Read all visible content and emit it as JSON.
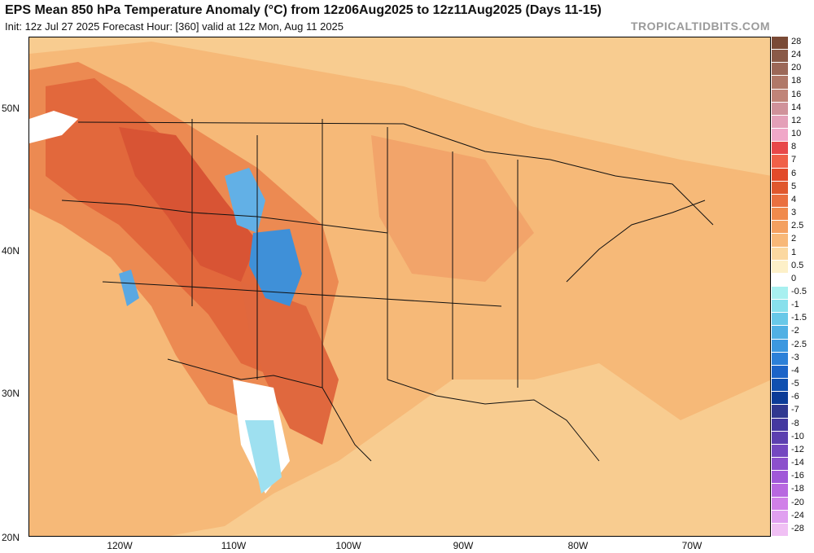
{
  "header": {
    "title": "EPS Mean 850 hPa Temperature Anomaly (°C) from 12z06Aug2025 to 12z11Aug2025 (Days 11-15)",
    "subtitle": "Init: 12z Jul 27 2025   Forecast Hour: [360]   valid at 12z Mon, Aug 11 2025",
    "credit": "TROPICALTIDBITS.COM"
  },
  "map": {
    "lat_labels": [
      "50N",
      "40N",
      "30N",
      "20N"
    ],
    "lon_labels": [
      "120W",
      "110W",
      "100W",
      "90W",
      "80W",
      "70W"
    ],
    "background_color": "#f7c98c"
  },
  "colorbar": {
    "labels": [
      "28",
      "24",
      "20",
      "18",
      "16",
      "14",
      "12",
      "10",
      "8",
      "7",
      "6",
      "5",
      "4",
      "3",
      "2.5",
      "2",
      "1",
      "0.5",
      "0",
      "-0.5",
      "-1",
      "-1.5",
      "-2",
      "-2.5",
      "-3",
      "-4",
      "-5",
      "-6",
      "-7",
      "-8",
      "-10",
      "-12",
      "-14",
      "-16",
      "-18",
      "-20",
      "-24",
      "-28"
    ],
    "colors": [
      "#7a4a36",
      "#8a5a48",
      "#9c6858",
      "#b07868",
      "#c08478",
      "#d0929a",
      "#e4a0b8",
      "#f0a8c8",
      "#e8484a",
      "#f06048",
      "#e24a2a",
      "#e0582e",
      "#ea7040",
      "#f08a4c",
      "#f4a060",
      "#f8b878",
      "#fbd8a0",
      "#fdf0c8",
      "#ffffff",
      "#a8f0f0",
      "#88e0ec",
      "#68c8e8",
      "#50b0e4",
      "#3c98e0",
      "#2c80d8",
      "#1c64c8",
      "#1050b0",
      "#0c3c98",
      "#303890",
      "#4438a0",
      "#5c40b0",
      "#7448c0",
      "#8c50cc",
      "#a058d8",
      "#b868e0",
      "#d080e8",
      "#e0a0f0",
      "#f0c0f4"
    ]
  }
}
